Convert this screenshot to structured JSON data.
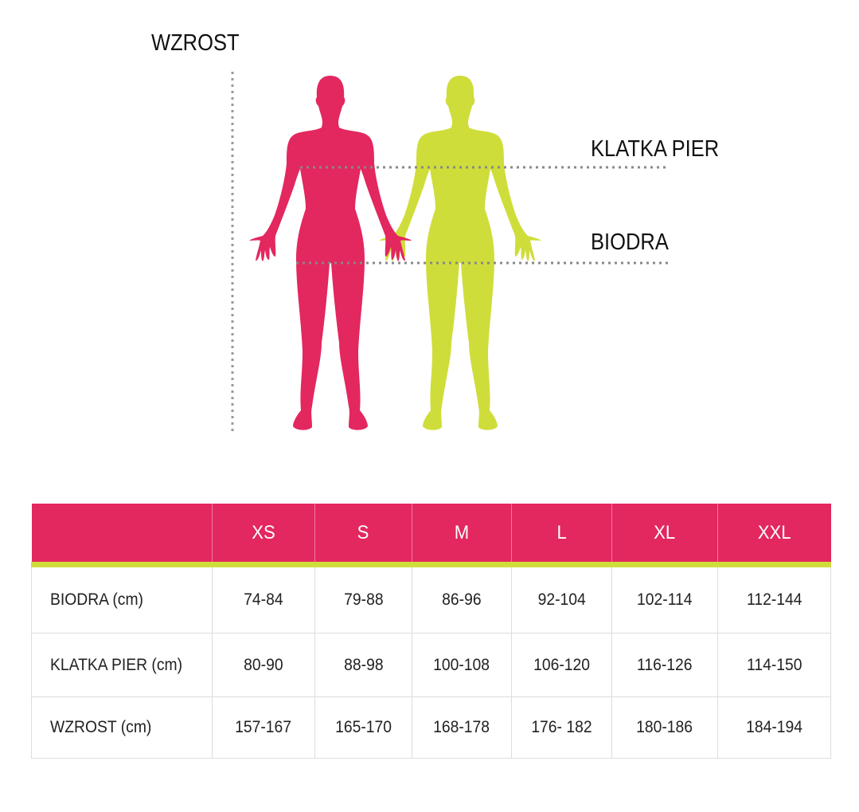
{
  "colors": {
    "primary": "#e3275f",
    "secondary": "#cfdd3a",
    "guide": "#999999"
  },
  "figure_labels": {
    "height": "WZROST",
    "chest": "KLATKA PIER",
    "hips": "BIODRA"
  },
  "table": {
    "sizes": [
      "XS",
      "S",
      "M",
      "L",
      "XL",
      "XXL"
    ],
    "rows": [
      {
        "label": "BIODRA (cm)",
        "values": [
          "74-84",
          "79-88",
          "86-96",
          "92-104",
          "102-114",
          "112-144"
        ]
      },
      {
        "label": "KLATKA PIER (cm)",
        "values": [
          "80-90",
          "88-98",
          "100-108",
          "106-120",
          "116-126",
          "114-150"
        ]
      },
      {
        "label": "WZROST (cm)",
        "values": [
          "157-167",
          "165-170",
          "168-178",
          "176- 182",
          "180-186",
          "184-194"
        ]
      }
    ]
  }
}
